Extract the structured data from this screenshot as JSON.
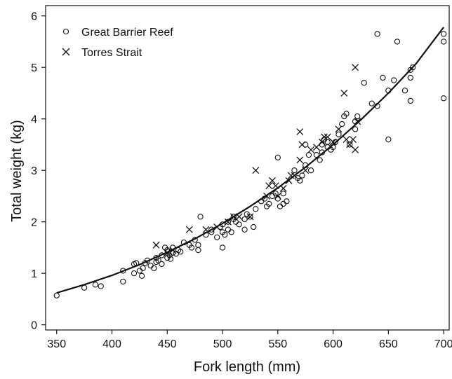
{
  "chart_data": {
    "type": "scatter",
    "xlabel": "Fork length (mm)",
    "ylabel": "Total weight (kg)",
    "xlim": [
      340,
      705
    ],
    "ylim": [
      -0.1,
      6.2
    ],
    "xticks": [
      350,
      400,
      450,
      500,
      550,
      600,
      650,
      700
    ],
    "yticks": [
      0,
      1,
      2,
      3,
      4,
      5,
      6
    ],
    "grid": false,
    "legend_position": "top-left",
    "series": [
      {
        "name": "Great Barrier Reef",
        "marker": "circle",
        "x": [
          350,
          375,
          385,
          390,
          410,
          410,
          420,
          420,
          422,
          425,
          427,
          428,
          430,
          432,
          435,
          438,
          440,
          440,
          442,
          445,
          445,
          448,
          450,
          450,
          451,
          452,
          453,
          455,
          455,
          458,
          460,
          462,
          465,
          470,
          472,
          475,
          478,
          478,
          480,
          485,
          490,
          490,
          495,
          498,
          500,
          500,
          500,
          502,
          505,
          505,
          508,
          510,
          510,
          512,
          515,
          520,
          520,
          522,
          525,
          528,
          530,
          535,
          538,
          540,
          542,
          545,
          548,
          550,
          550,
          552,
          555,
          555,
          558,
          565,
          568,
          570,
          572,
          575,
          575,
          578,
          580,
          585,
          588,
          590,
          590,
          592,
          595,
          595,
          598,
          600,
          602,
          605,
          608,
          610,
          612,
          615,
          620,
          620,
          622,
          628,
          635,
          640,
          640,
          645,
          650,
          650,
          655,
          658,
          665,
          670,
          670,
          670,
          672,
          700,
          700,
          700
        ],
        "y": [
          0.57,
          0.72,
          0.78,
          0.75,
          1.05,
          0.84,
          1.0,
          1.18,
          1.2,
          1.05,
          0.95,
          1.1,
          1.2,
          1.25,
          1.15,
          1.1,
          1.22,
          1.3,
          1.25,
          1.35,
          1.18,
          1.5,
          1.45,
          1.3,
          1.42,
          1.35,
          1.28,
          1.4,
          1.5,
          1.38,
          1.45,
          1.42,
          1.6,
          1.55,
          1.5,
          1.65,
          1.45,
          1.55,
          2.1,
          1.75,
          1.8,
          1.85,
          1.7,
          1.9,
          1.5,
          1.95,
          1.8,
          1.75,
          2.0,
          1.85,
          1.8,
          2.05,
          2.1,
          2.0,
          1.95,
          1.85,
          2.05,
          2.15,
          2.1,
          1.9,
          2.25,
          2.4,
          2.45,
          2.3,
          2.35,
          2.5,
          2.55,
          3.25,
          2.45,
          2.3,
          2.35,
          2.55,
          2.4,
          3.0,
          2.85,
          2.8,
          2.9,
          3.1,
          3.5,
          3.3,
          3.0,
          3.3,
          3.2,
          3.35,
          3.5,
          3.6,
          3.45,
          3.55,
          3.4,
          3.45,
          3.55,
          3.7,
          3.9,
          4.05,
          4.1,
          3.5,
          3.8,
          3.95,
          4.05,
          4.7,
          4.3,
          5.65,
          4.25,
          4.8,
          4.55,
          3.6,
          4.75,
          5.5,
          4.55,
          4.35,
          4.8,
          4.95,
          5.0,
          4.4,
          5.65,
          5.5
        ]
      },
      {
        "name": "Torres Strait",
        "marker": "x",
        "x": [
          440,
          450,
          455,
          470,
          485,
          495,
          505,
          510,
          515,
          525,
          530,
          540,
          542,
          545,
          548,
          550,
          555,
          560,
          562,
          565,
          570,
          570,
          572,
          575,
          580,
          585,
          590,
          592,
          595,
          600,
          605,
          610,
          612,
          615,
          618,
          620,
          620,
          622
        ],
        "y": [
          1.55,
          1.4,
          1.45,
          1.85,
          1.85,
          1.9,
          2.0,
          2.1,
          2.1,
          2.1,
          3.0,
          2.5,
          2.7,
          2.8,
          2.7,
          2.5,
          2.65,
          2.8,
          2.9,
          2.9,
          3.2,
          3.75,
          3.5,
          3.0,
          3.4,
          3.45,
          3.55,
          3.65,
          3.65,
          3.55,
          3.8,
          4.5,
          3.6,
          3.5,
          3.6,
          3.4,
          5.0,
          3.95
        ]
      }
    ],
    "fit_curve": {
      "x": [
        350,
        375,
        400,
        425,
        450,
        475,
        500,
        525,
        550,
        575,
        600,
        625,
        650,
        675,
        700
      ],
      "y": [
        0.62,
        0.78,
        0.96,
        1.17,
        1.41,
        1.67,
        1.97,
        2.3,
        2.66,
        3.06,
        3.5,
        3.98,
        4.5,
        5.07,
        5.78
      ]
    }
  }
}
